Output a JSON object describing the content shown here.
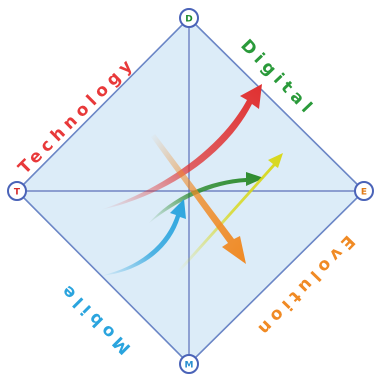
{
  "nodes": {
    "top": "D",
    "left": "T",
    "right": "E",
    "bottom": "M"
  },
  "labels": {
    "technology": "Technology",
    "digital": "Digital",
    "mobile": "Mobile",
    "evolution": "Evolution"
  },
  "colors": {
    "diamond_fill": "#dcecf8",
    "diamond_stroke": "#6b86c6",
    "axis": "#5b6fb8",
    "node_ring": "#4a63b8",
    "technology": "#e8393a",
    "digital": "#2a9a3a",
    "mobile": "#2aa4de",
    "evolution": "#f08a24",
    "node_letter_D": "#1e8a2e",
    "node_letter_T": "#d62d2d",
    "node_letter_E": "#e07a18",
    "node_letter_M": "#2a8fd0",
    "arrow_red": "#e03030",
    "arrow_green": "#2a8a2a",
    "arrow_yellow": "#d8d81c",
    "arrow_blue": "#2aa4de",
    "arrow_orange": "#f08a24"
  }
}
